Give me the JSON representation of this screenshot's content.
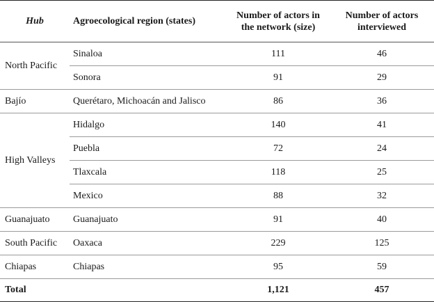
{
  "headers": {
    "hub": "Hub",
    "region": "Agroecological region (states)",
    "size_line1": "Number of actors in",
    "size_line2": "the network (size)",
    "interviewed_line1": "Number of actors",
    "interviewed_line2": "interviewed"
  },
  "groups": [
    {
      "hub": "North Pacific",
      "rows": [
        {
          "region": "Sinaloa",
          "size": "111",
          "interviewed": "46"
        },
        {
          "region": "Sonora",
          "size": "91",
          "interviewed": "29"
        }
      ]
    },
    {
      "hub": "Bajío",
      "rows": [
        {
          "region": "Querétaro, Michoacán and Jalisco",
          "size": "86",
          "interviewed": "36"
        }
      ]
    },
    {
      "hub": "High Valleys",
      "rows": [
        {
          "region": "Hidalgo",
          "size": "140",
          "interviewed": "41"
        },
        {
          "region": "Puebla",
          "size": "72",
          "interviewed": "24"
        },
        {
          "region": "Tlaxcala",
          "size": "118",
          "interviewed": "25"
        },
        {
          "region": "Mexico",
          "size": "88",
          "interviewed": "32"
        }
      ]
    },
    {
      "hub": "Guanajuato",
      "rows": [
        {
          "region": "Guanajuato",
          "size": "91",
          "interviewed": "40"
        }
      ]
    },
    {
      "hub": "South Pacific",
      "rows": [
        {
          "region": "Oaxaca",
          "size": "229",
          "interviewed": "125"
        }
      ]
    },
    {
      "hub": "Chiapas",
      "rows": [
        {
          "region": "Chiapas",
          "size": "95",
          "interviewed": "59"
        }
      ]
    }
  ],
  "total": {
    "label": "Total",
    "size": "1,121",
    "interviewed": "457"
  }
}
